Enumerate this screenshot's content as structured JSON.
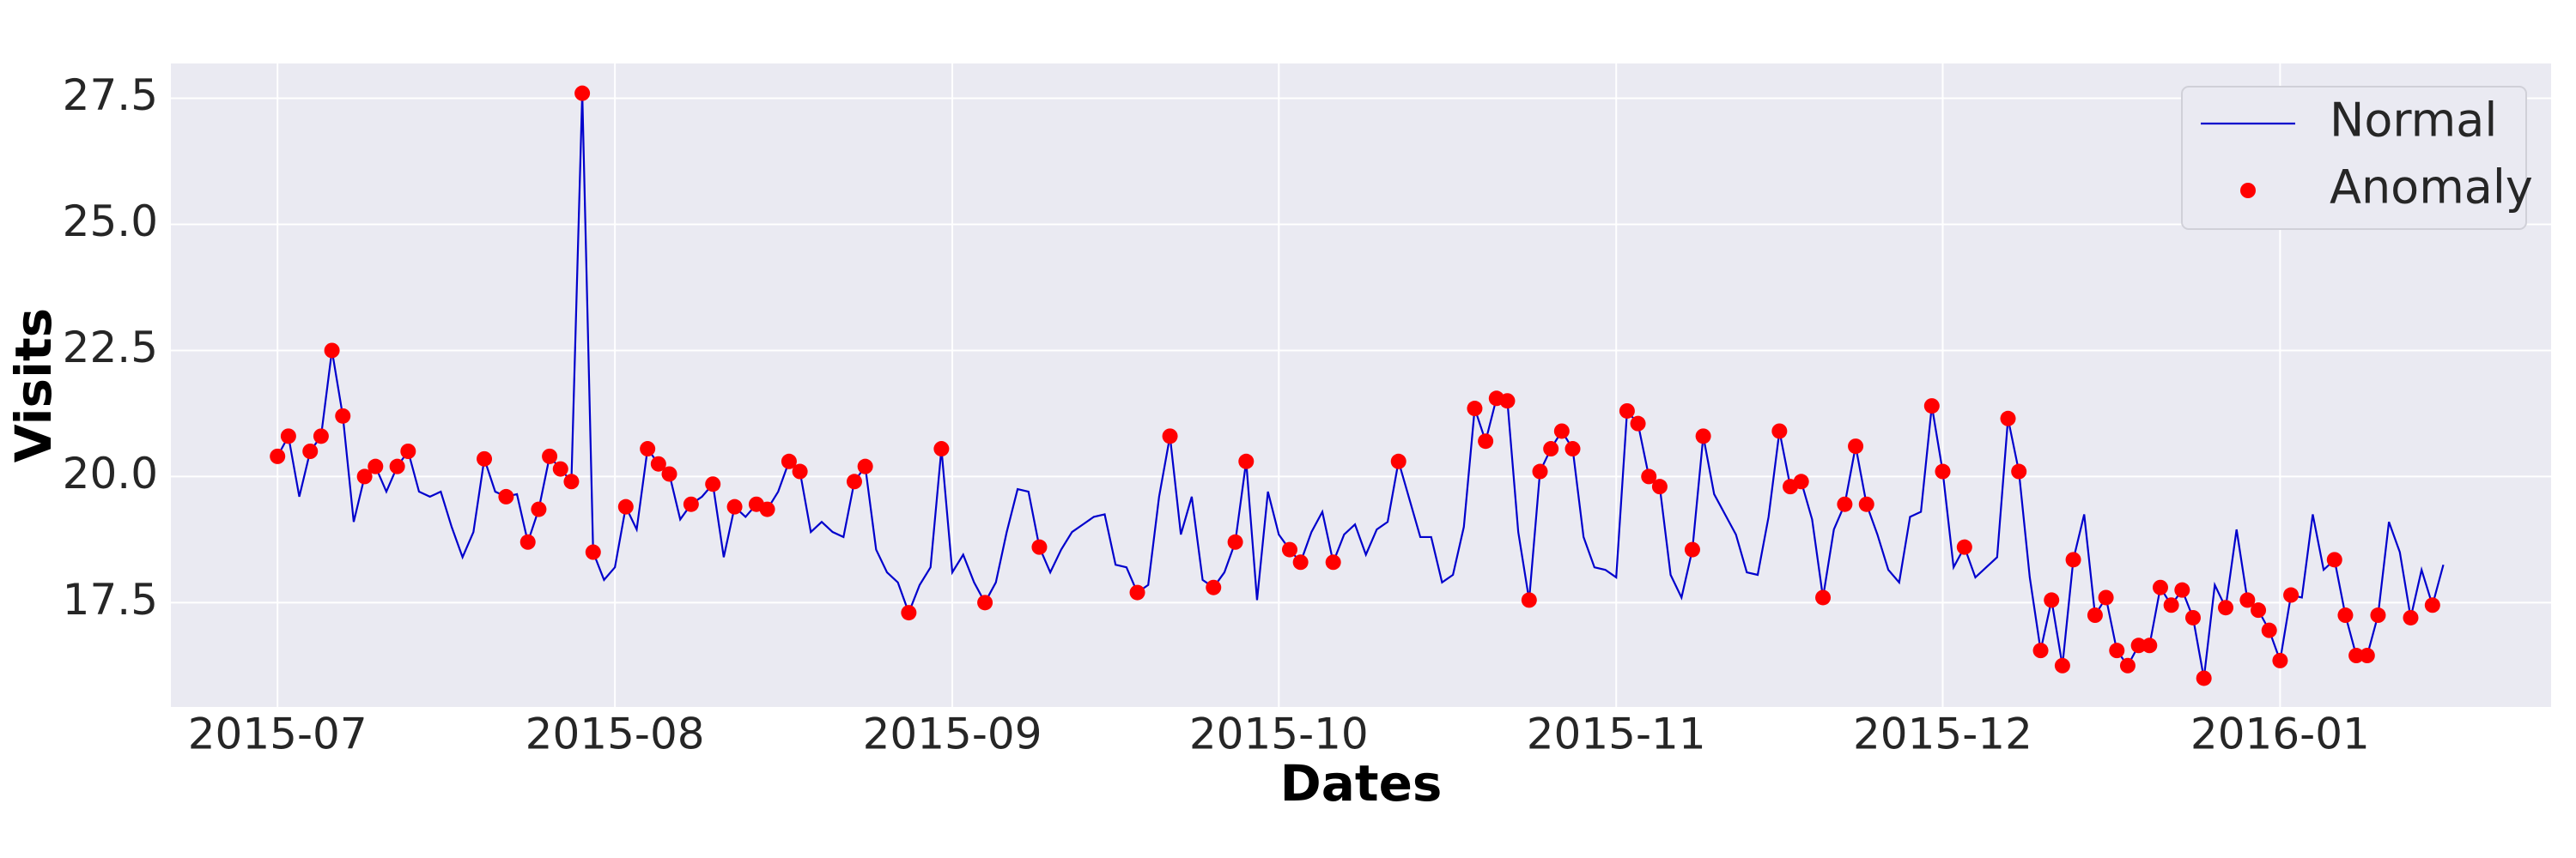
{
  "chart_data": {
    "type": "line",
    "xlabel": "Dates",
    "ylabel": "Visits",
    "x": [
      0,
      1,
      2,
      3,
      4,
      5,
      6,
      7,
      8,
      9,
      10,
      11,
      12,
      13,
      14,
      15,
      16,
      17,
      18,
      19,
      20,
      21,
      22,
      23,
      24,
      25,
      26,
      27,
      28,
      29,
      30,
      31,
      32,
      33,
      34,
      35,
      36,
      37,
      38,
      39,
      40,
      41,
      42,
      43,
      44,
      45,
      46,
      47,
      48,
      49,
      50,
      51,
      52,
      53,
      54,
      55,
      56,
      57,
      58,
      59,
      60,
      61,
      62,
      63,
      64,
      65,
      66,
      67,
      68,
      69,
      70,
      71,
      72,
      73,
      74,
      75,
      76,
      77,
      78,
      79,
      80,
      81,
      82,
      83,
      84,
      85,
      86,
      87,
      88,
      89,
      90,
      91,
      92,
      93,
      94,
      95,
      96,
      97,
      98,
      99,
      100,
      101,
      102,
      103,
      104,
      105,
      106,
      107,
      108,
      109,
      110,
      111,
      112,
      113,
      114,
      115,
      116,
      117,
      118,
      119,
      120,
      121,
      122,
      123,
      124,
      125,
      126,
      127,
      128,
      129,
      130,
      131,
      132,
      133,
      134,
      135,
      136,
      137,
      138,
      139,
      140,
      141,
      142,
      143,
      144,
      145,
      146,
      147,
      148,
      149,
      150,
      151,
      152,
      153,
      154,
      155,
      156,
      157,
      158,
      159,
      160,
      161,
      162,
      163,
      164,
      165,
      166,
      167,
      168,
      169,
      170,
      171,
      172,
      173,
      174,
      175,
      176,
      177,
      178,
      179,
      180,
      181,
      182,
      183,
      184,
      185,
      186,
      187,
      188,
      189,
      190,
      191,
      192,
      193,
      194,
      195,
      196,
      197,
      198,
      199
    ],
    "series": [
      {
        "name": "Normal",
        "kind": "line",
        "color": "#0000cc",
        "values": [
          20.4,
          20.8,
          19.6,
          20.5,
          20.8,
          22.5,
          21.2,
          19.1,
          20.0,
          20.2,
          19.7,
          20.2,
          20.5,
          19.7,
          19.6,
          19.7,
          19.0,
          18.4,
          18.9,
          20.35,
          19.7,
          19.6,
          19.65,
          18.7,
          19.35,
          20.4,
          20.15,
          19.9,
          27.6,
          18.5,
          17.95,
          18.2,
          19.4,
          18.95,
          20.55,
          20.25,
          20.05,
          19.15,
          19.45,
          19.6,
          19.85,
          18.4,
          19.4,
          19.2,
          19.45,
          19.35,
          19.7,
          20.3,
          20.1,
          18.9,
          19.1,
          18.9,
          18.8,
          19.9,
          20.2,
          18.55,
          18.1,
          17.9,
          17.3,
          17.85,
          18.2,
          20.55,
          18.1,
          18.45,
          17.9,
          17.5,
          17.9,
          18.9,
          19.75,
          19.7,
          18.6,
          18.1,
          18.55,
          18.9,
          19.05,
          19.2,
          19.25,
          18.25,
          18.2,
          17.7,
          17.85,
          19.6,
          20.8,
          18.85,
          19.6,
          17.95,
          17.8,
          18.1,
          18.7,
          20.3,
          17.55,
          19.7,
          18.85,
          18.55,
          18.3,
          18.9,
          19.3,
          18.3,
          18.85,
          19.05,
          18.45,
          18.95,
          19.1,
          20.3,
          19.55,
          18.8,
          18.8,
          17.9,
          18.05,
          19.0,
          21.35,
          20.7,
          21.55,
          21.5,
          18.9,
          17.55,
          20.1,
          20.55,
          20.9,
          20.55,
          18.8,
          18.2,
          18.15,
          18.0,
          21.3,
          21.05,
          20.0,
          19.8,
          18.05,
          17.6,
          18.55,
          20.8,
          19.65,
          19.25,
          18.85,
          18.1,
          18.05,
          19.2,
          20.9,
          19.8,
          19.9,
          19.15,
          17.6,
          18.95,
          19.45,
          20.6,
          19.45,
          18.85,
          18.15,
          17.9,
          19.2,
          19.3,
          21.4,
          20.1,
          18.2,
          18.6,
          18.0,
          18.2,
          18.4,
          21.15,
          20.1,
          18.0,
          16.55,
          17.55,
          16.25,
          18.35,
          19.25,
          17.25,
          17.6,
          16.55,
          16.25,
          16.65,
          16.65,
          17.8,
          17.45,
          17.75,
          17.2,
          16.0,
          17.85,
          17.4,
          18.95,
          17.55,
          17.35,
          16.95,
          16.35,
          17.65,
          17.6,
          19.25,
          18.15,
          18.35,
          17.25,
          16.45,
          16.45,
          17.25,
          19.1,
          18.5,
          17.2,
          18.15,
          17.45,
          18.25
        ]
      },
      {
        "name": "Anomaly",
        "kind": "scatter",
        "color": "#ff0000",
        "values": [
          20.4,
          20.8,
          null,
          20.5,
          20.8,
          22.5,
          21.2,
          null,
          20.0,
          20.2,
          null,
          20.2,
          20.5,
          null,
          null,
          null,
          null,
          null,
          null,
          20.35,
          null,
          19.6,
          null,
          18.7,
          19.35,
          20.4,
          20.15,
          19.9,
          27.6,
          18.5,
          null,
          null,
          19.4,
          null,
          20.55,
          20.25,
          20.05,
          null,
          19.45,
          null,
          19.85,
          null,
          19.4,
          null,
          19.45,
          19.35,
          null,
          20.3,
          20.1,
          null,
          null,
          null,
          null,
          19.9,
          20.2,
          null,
          null,
          null,
          17.3,
          null,
          null,
          20.55,
          null,
          null,
          null,
          17.5,
          null,
          null,
          null,
          null,
          18.6,
          null,
          null,
          null,
          null,
          null,
          null,
          null,
          null,
          17.7,
          null,
          null,
          20.8,
          null,
          null,
          null,
          17.8,
          null,
          18.7,
          20.3,
          null,
          null,
          null,
          18.55,
          18.3,
          null,
          null,
          18.3,
          null,
          null,
          null,
          null,
          null,
          20.3,
          null,
          null,
          null,
          null,
          null,
          null,
          21.35,
          20.7,
          21.55,
          21.5,
          null,
          17.55,
          20.1,
          20.55,
          20.9,
          20.55,
          null,
          null,
          null,
          null,
          21.3,
          21.05,
          20.0,
          19.8,
          null,
          null,
          18.55,
          20.8,
          null,
          null,
          null,
          null,
          null,
          null,
          20.9,
          19.8,
          19.9,
          null,
          17.6,
          null,
          19.45,
          20.6,
          19.45,
          null,
          null,
          null,
          null,
          null,
          21.4,
          20.1,
          null,
          18.6,
          null,
          null,
          null,
          21.15,
          20.1,
          null,
          16.55,
          17.55,
          16.25,
          18.35,
          null,
          17.25,
          17.6,
          16.55,
          16.25,
          16.65,
          16.65,
          17.8,
          17.45,
          17.75,
          17.2,
          16.0,
          null,
          17.4,
          null,
          17.55,
          17.35,
          16.95,
          16.35,
          17.65,
          null,
          null,
          null,
          18.35,
          17.25,
          16.45,
          16.45,
          17.25,
          null,
          null,
          17.2,
          null,
          17.45,
          null
        ]
      }
    ],
    "xlim": [
      -9.8,
      208.9
    ],
    "xticks": [
      {
        "value": 0,
        "label": "2015-07"
      },
      {
        "value": 31,
        "label": "2015-08"
      },
      {
        "value": 62,
        "label": "2015-09"
      },
      {
        "value": 92,
        "label": "2015-10"
      },
      {
        "value": 123,
        "label": "2015-11"
      },
      {
        "value": 153,
        "label": "2015-12"
      },
      {
        "value": 184,
        "label": "2016-01"
      }
    ],
    "ylim": [
      15.43,
      28.19
    ],
    "yticks": [
      17.5,
      {
        "value": 20,
        "label": "20.0"
      },
      22.5,
      {
        "value": 25,
        "label": "25.0"
      },
      27.5
    ],
    "grid": true,
    "legend": "upper right"
  }
}
